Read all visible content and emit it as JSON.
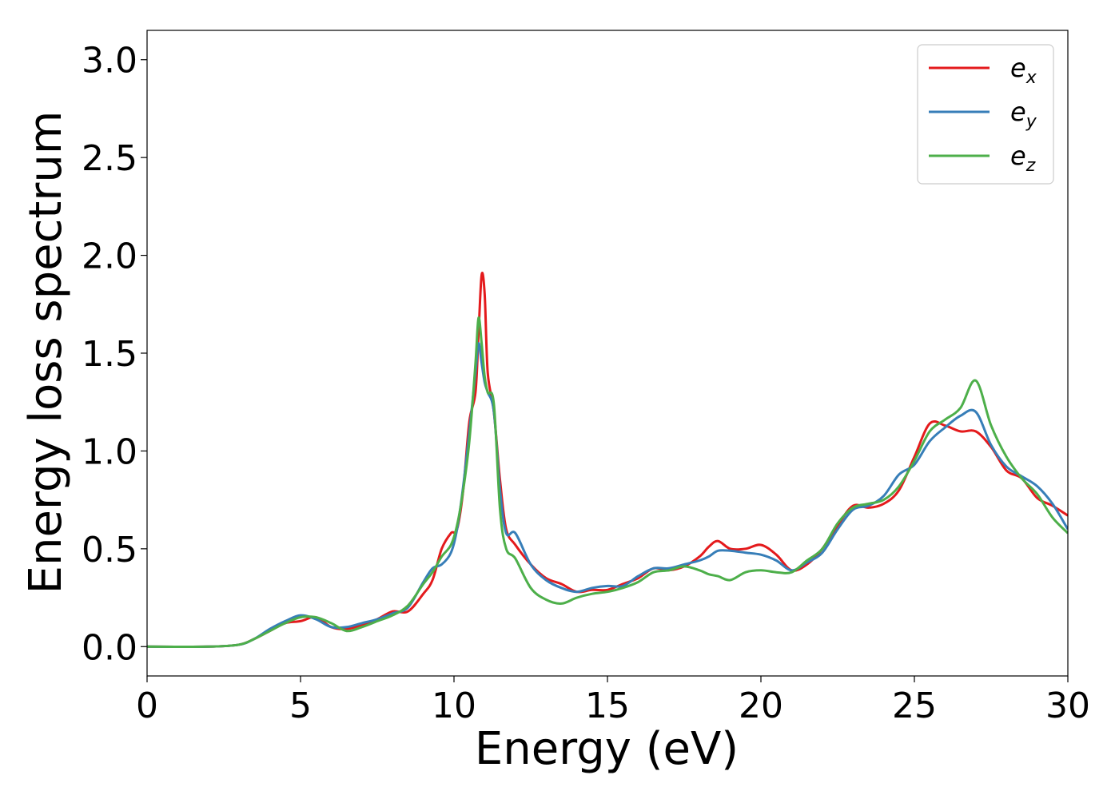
{
  "chart_data": {
    "type": "line",
    "xlabel": "Energy (eV)",
    "ylabel": "Energy loss spectrum",
    "xlim": [
      0,
      30
    ],
    "ylim": [
      -0.15,
      3.15
    ],
    "xticks": [
      0,
      5,
      10,
      15,
      20,
      25,
      30
    ],
    "xtick_labels": [
      "0",
      "5",
      "10",
      "15",
      "20",
      "25",
      "30"
    ],
    "yticks": [
      0.0,
      0.5,
      1.0,
      1.5,
      2.0,
      2.5,
      3.0
    ],
    "ytick_labels": [
      "0.0",
      "0.5",
      "1.0",
      "1.5",
      "2.0",
      "2.5",
      "3.0"
    ],
    "grid": false,
    "legend_position": "top-right",
    "series": [
      {
        "name": "e",
        "subscript": "x",
        "color": "#e41a1c",
        "x": [
          0,
          2,
          3,
          3.5,
          4,
          4.5,
          5,
          5.5,
          6,
          6.5,
          7,
          7.5,
          8,
          8.5,
          9,
          9.3,
          9.6,
          9.9,
          10.1,
          10.3,
          10.5,
          10.7,
          10.8,
          10.9,
          11.0,
          11.1,
          11.3,
          11.5,
          11.7,
          12,
          12.5,
          13,
          13.5,
          14,
          14.5,
          15,
          15.5,
          16,
          16.5,
          17,
          17.5,
          18,
          18.3,
          18.6,
          19,
          19.5,
          20,
          20.5,
          21,
          21.5,
          22,
          22.5,
          23,
          23.5,
          24,
          24.5,
          25,
          25.5,
          26,
          26.5,
          27,
          27.5,
          28,
          28.5,
          29,
          29.5,
          30
        ],
        "y": [
          0,
          0,
          0.01,
          0.04,
          0.08,
          0.12,
          0.13,
          0.15,
          0.1,
          0.09,
          0.11,
          0.14,
          0.18,
          0.18,
          0.27,
          0.34,
          0.5,
          0.58,
          0.6,
          0.8,
          1.15,
          1.3,
          1.6,
          1.9,
          1.8,
          1.4,
          1.2,
          0.85,
          0.6,
          0.52,
          0.42,
          0.35,
          0.32,
          0.28,
          0.29,
          0.29,
          0.32,
          0.35,
          0.4,
          0.39,
          0.41,
          0.46,
          0.51,
          0.54,
          0.5,
          0.5,
          0.52,
          0.47,
          0.39,
          0.42,
          0.5,
          0.62,
          0.72,
          0.71,
          0.73,
          0.8,
          0.97,
          1.14,
          1.13,
          1.1,
          1.1,
          1.02,
          0.9,
          0.86,
          0.76,
          0.72,
          0.67
        ]
      },
      {
        "name": "e",
        "subscript": "y",
        "color": "#377eb8",
        "x": [
          0,
          2,
          3,
          3.5,
          4,
          4.5,
          5,
          5.5,
          6,
          6.5,
          7,
          7.5,
          8,
          8.5,
          9,
          9.3,
          9.6,
          9.9,
          10.1,
          10.3,
          10.5,
          10.7,
          10.8,
          10.9,
          11.0,
          11.1,
          11.3,
          11.5,
          11.7,
          12,
          12.5,
          13,
          13.5,
          14,
          14.5,
          15,
          15.5,
          16,
          16.5,
          17,
          17.5,
          18,
          18.3,
          18.6,
          19,
          19.5,
          20,
          20.5,
          21,
          21.5,
          22,
          22.5,
          23,
          23.5,
          24,
          24.5,
          25,
          25.5,
          26,
          26.5,
          27,
          27.5,
          28,
          28.5,
          29,
          29.5,
          30
        ],
        "y": [
          0,
          0,
          0.01,
          0.04,
          0.09,
          0.13,
          0.16,
          0.14,
          0.1,
          0.1,
          0.12,
          0.14,
          0.17,
          0.2,
          0.33,
          0.4,
          0.42,
          0.48,
          0.6,
          0.82,
          1.1,
          1.4,
          1.55,
          1.45,
          1.35,
          1.3,
          1.2,
          0.8,
          0.58,
          0.58,
          0.42,
          0.34,
          0.3,
          0.28,
          0.3,
          0.31,
          0.31,
          0.36,
          0.4,
          0.4,
          0.42,
          0.44,
          0.46,
          0.49,
          0.49,
          0.48,
          0.47,
          0.44,
          0.39,
          0.43,
          0.48,
          0.6,
          0.7,
          0.72,
          0.77,
          0.88,
          0.93,
          1.05,
          1.12,
          1.18,
          1.2,
          1.03,
          0.92,
          0.87,
          0.82,
          0.73,
          0.6
        ]
      },
      {
        "name": "e",
        "subscript": "z",
        "color": "#4daf4a",
        "x": [
          0,
          2,
          3,
          3.5,
          4,
          4.5,
          5,
          5.5,
          6,
          6.5,
          7,
          7.5,
          8,
          8.5,
          9,
          9.3,
          9.6,
          9.9,
          10.1,
          10.3,
          10.5,
          10.7,
          10.8,
          10.9,
          11.0,
          11.1,
          11.3,
          11.5,
          11.7,
          12,
          12.5,
          13,
          13.5,
          14,
          14.5,
          15,
          15.5,
          16,
          16.5,
          17,
          17.5,
          18,
          18.3,
          18.6,
          19,
          19.5,
          20,
          20.5,
          21,
          21.5,
          22,
          22.5,
          23,
          23.5,
          24,
          24.5,
          25,
          25.5,
          26,
          26.5,
          27,
          27.5,
          28,
          28.5,
          29,
          29.5,
          30
        ],
        "y": [
          0,
          0,
          0.01,
          0.04,
          0.08,
          0.12,
          0.15,
          0.15,
          0.12,
          0.08,
          0.1,
          0.13,
          0.16,
          0.21,
          0.32,
          0.38,
          0.46,
          0.52,
          0.62,
          0.8,
          1.05,
          1.45,
          1.68,
          1.55,
          1.38,
          1.3,
          1.24,
          0.7,
          0.5,
          0.45,
          0.3,
          0.24,
          0.22,
          0.25,
          0.27,
          0.28,
          0.3,
          0.33,
          0.38,
          0.39,
          0.41,
          0.39,
          0.37,
          0.36,
          0.34,
          0.38,
          0.39,
          0.38,
          0.38,
          0.44,
          0.5,
          0.63,
          0.71,
          0.73,
          0.75,
          0.82,
          0.95,
          1.1,
          1.16,
          1.22,
          1.36,
          1.13,
          0.97,
          0.86,
          0.78,
          0.66,
          0.58
        ]
      }
    ]
  }
}
